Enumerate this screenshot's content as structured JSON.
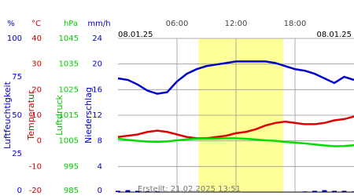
{
  "chart_data": {
    "type": "line",
    "date_left": "08.01.25",
    "date_right": "08.01.25",
    "created": "Erstellt: 21.02.2025 13:51",
    "xlim": [
      0,
      24
    ],
    "xticks": [
      {
        "value": 6,
        "label": "06:00"
      },
      {
        "value": 12,
        "label": "12:00"
      },
      {
        "value": 18,
        "label": "18:00"
      }
    ],
    "daylight": [
      8.2,
      16.8
    ],
    "axes": [
      {
        "unit": "%",
        "label": "Luftfeuchtigkeit",
        "color": "#0000cc",
        "lim": [
          0,
          100
        ],
        "ticks": [
          0,
          25,
          50,
          75,
          100
        ]
      },
      {
        "unit": "°C",
        "label": "Temperatur",
        "color": "#cc0000",
        "lim": [
          -20,
          40
        ],
        "ticks": [
          -20,
          -10,
          0,
          10,
          20,
          30,
          40
        ]
      },
      {
        "unit": "hPa",
        "label": "Luftdruck",
        "color": "#00cc00",
        "lim": [
          985,
          1045
        ],
        "ticks": [
          985,
          995,
          1005,
          1015,
          1025,
          1035,
          1045
        ]
      },
      {
        "unit": "mm/h",
        "label": "Niederschlag",
        "color": "#0000cc",
        "lim": [
          0,
          24
        ],
        "ticks": [
          0,
          4,
          8,
          12,
          16,
          20,
          24
        ]
      }
    ],
    "x": [
      0,
      1,
      2,
      3,
      4,
      5,
      6,
      7,
      8,
      9,
      10,
      11,
      12,
      13,
      14,
      15,
      16,
      17,
      18,
      19,
      20,
      21,
      22,
      23,
      24
    ],
    "series": [
      {
        "axis": 0,
        "color": "#0000cc",
        "values": [
          74,
          73,
          70,
          66,
          64,
          65,
          72,
          77,
          80,
          82,
          83,
          84,
          85,
          85,
          85,
          85,
          84,
          82,
          80,
          79,
          77,
          74,
          71,
          75,
          73
        ]
      },
      {
        "axis": 1,
        "color": "#dd0000",
        "values": [
          1.5,
          2,
          2.5,
          3.5,
          4,
          3.5,
          2.5,
          1.5,
          1,
          1,
          1.5,
          2,
          3,
          3.5,
          4.5,
          6,
          7,
          7.5,
          7,
          6.5,
          6.5,
          7,
          8,
          8.5,
          9.5
        ]
      },
      {
        "axis": 2,
        "color": "#00dd00",
        "values": [
          1005.8,
          1005.4,
          1005,
          1004.7,
          1004.6,
          1004.8,
          1005.2,
          1005.6,
          1005.8,
          1005.8,
          1005.9,
          1006,
          1006,
          1005.8,
          1005.5,
          1005.2,
          1005,
          1004.6,
          1004.3,
          1004,
          1003.6,
          1003.2,
          1002.9,
          1003,
          1003.3
        ]
      },
      {
        "axis": 3,
        "color": "#0000cc",
        "bars": true,
        "values": [
          0.2,
          0.3,
          0.2,
          0.1,
          0.1,
          0,
          0,
          0,
          0,
          0,
          0,
          0,
          0,
          0,
          0,
          0,
          0,
          0,
          0,
          0.1,
          0.2,
          0.3,
          0.2,
          0.2,
          0.1
        ]
      }
    ]
  }
}
